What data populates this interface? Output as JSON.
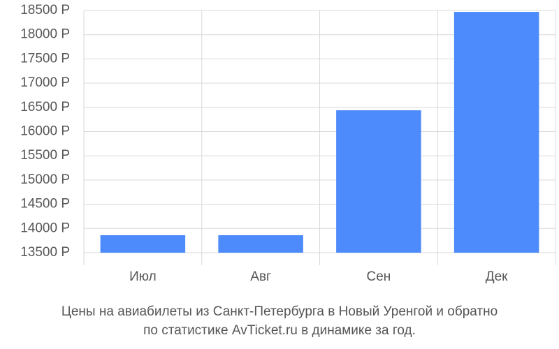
{
  "chart_data": {
    "type": "bar",
    "caption": [
      "Цены на авиабилеты из Санкт-Петербурга в Новый Уренгой и обратно",
      "по статистике AvTicket.ru в динамике за год."
    ],
    "categories": [
      "Июл",
      "Авг",
      "Сен",
      "Дек"
    ],
    "values": [
      13860,
      13860,
      16440,
      18470
    ],
    "color": "#4d8afc",
    "ylim": [
      13500,
      18500
    ],
    "yticks": [
      {
        "value": 13500,
        "label": "13500 Р"
      },
      {
        "value": 14000,
        "label": "14000 Р"
      },
      {
        "value": 14500,
        "label": "14500 Р"
      },
      {
        "value": 15000,
        "label": "15000 Р"
      },
      {
        "value": 15500,
        "label": "15500 Р"
      },
      {
        "value": 16000,
        "label": "16000 Р"
      },
      {
        "value": 16500,
        "label": "16500 Р"
      },
      {
        "value": 17000,
        "label": "17000 Р"
      },
      {
        "value": 17500,
        "label": "17500 Р"
      },
      {
        "value": 18000,
        "label": "18000 Р"
      },
      {
        "value": 18500,
        "label": "18500 Р"
      }
    ],
    "grid": true
  }
}
